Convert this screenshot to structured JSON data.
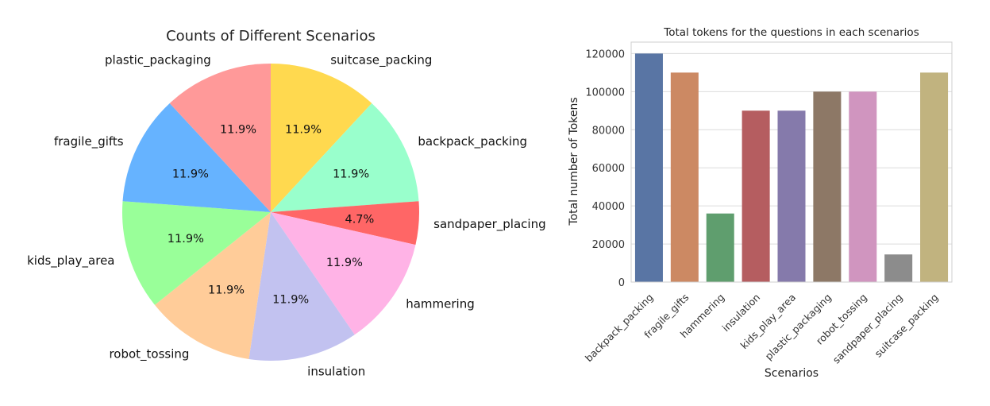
{
  "chart_data": [
    {
      "type": "pie",
      "title": "Counts of Different Scenarios",
      "categories": [
        "suitcase_packing",
        "backpack_packing",
        "sandpaper_placing",
        "hammering",
        "insulation",
        "robot_tossing",
        "kids_play_area",
        "fragile_gifts",
        "plastic_packaging"
      ],
      "values": [
        11.9,
        11.9,
        4.7,
        11.9,
        11.9,
        11.9,
        11.9,
        11.9,
        11.9
      ],
      "value_labels": [
        "11.9%",
        "11.9%",
        "4.7%",
        "11.9%",
        "11.9%",
        "11.9%",
        "11.9%",
        "11.9%",
        "11.9%"
      ],
      "colors": [
        "#ffd94f",
        "#99ffcc",
        "#ff6666",
        "#ffb3e6",
        "#c2c2f0",
        "#ffcc99",
        "#99ff99",
        "#66b3ff",
        "#ff9999"
      ],
      "start_angle_deg": 90,
      "direction": "clockwise"
    },
    {
      "type": "bar",
      "title": "Total tokens for the questions in each scenarios",
      "xlabel": "Scenarios",
      "ylabel": "Total number of Tokens",
      "categories": [
        "backpack_packing",
        "fragile_gifts",
        "hammering",
        "insulation",
        "kids_play_area",
        "plastic_packaging",
        "robot_tossing",
        "sandpaper_placing",
        "suitcase_packing"
      ],
      "values": [
        120000,
        110000,
        36000,
        90000,
        90000,
        100000,
        100000,
        14500,
        110000
      ],
      "colors": [
        "#5975a4",
        "#cc8963",
        "#5f9e6e",
        "#b55d60",
        "#857aab",
        "#8d7866",
        "#d095bf",
        "#8c8c8c",
        "#c1b37f"
      ],
      "ylim": [
        0,
        126000
      ],
      "yticks": [
        0,
        20000,
        40000,
        60000,
        80000,
        100000,
        120000
      ],
      "grid": "horizontal",
      "legend": "none"
    }
  ]
}
